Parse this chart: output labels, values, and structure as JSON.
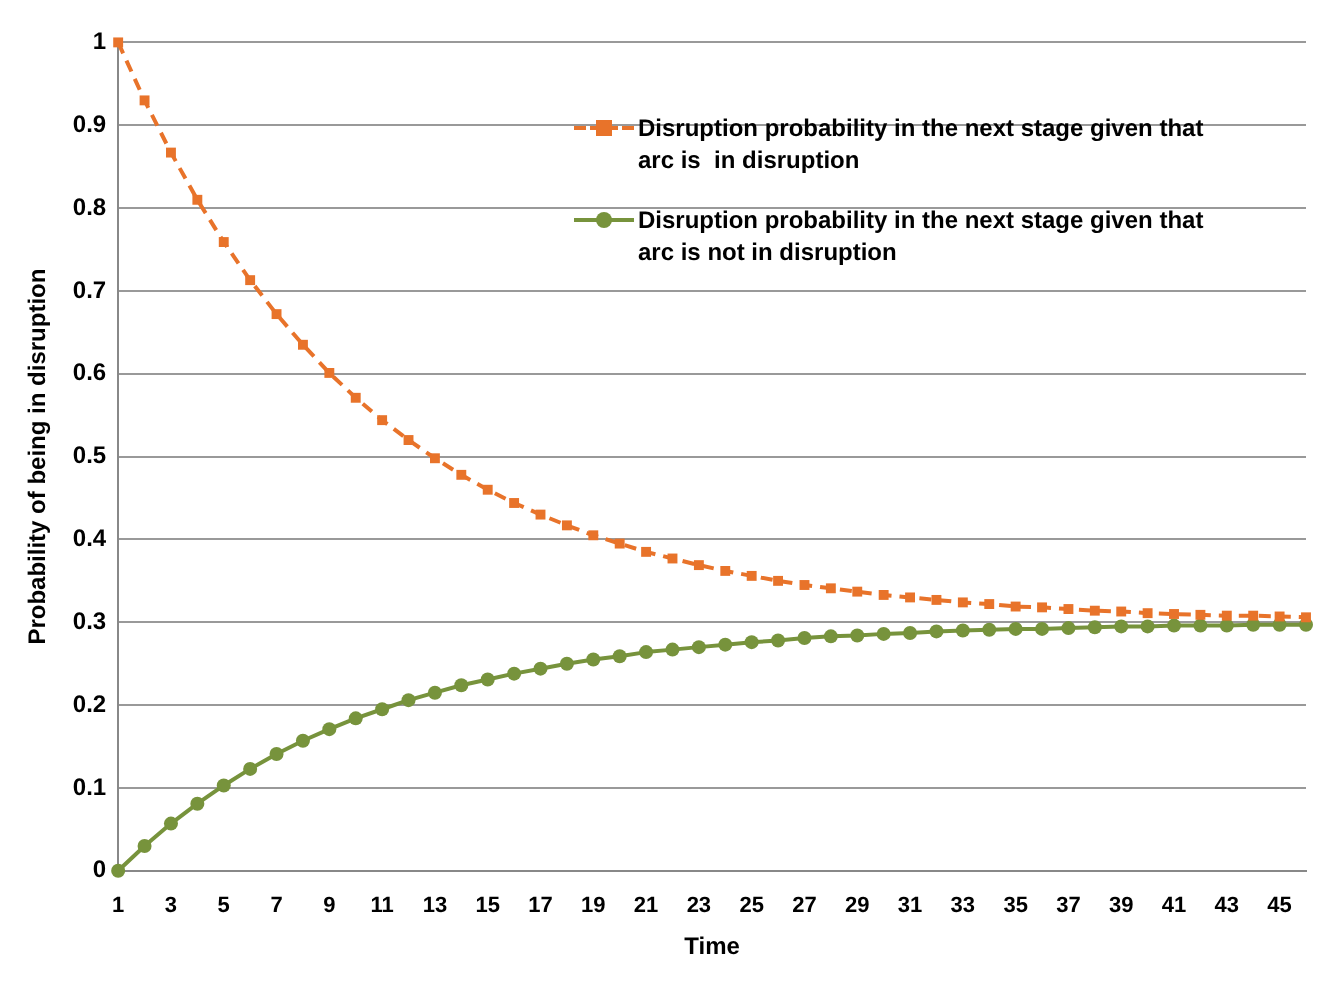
{
  "chart_data": {
    "type": "line",
    "xlabel": "Time",
    "ylabel": "Probability of being in disruption",
    "x": [
      1,
      2,
      3,
      4,
      5,
      6,
      7,
      8,
      9,
      10,
      11,
      12,
      13,
      14,
      15,
      16,
      17,
      18,
      19,
      20,
      21,
      22,
      23,
      24,
      25,
      26,
      27,
      28,
      29,
      30,
      31,
      32,
      33,
      34,
      35,
      36,
      37,
      38,
      39,
      40,
      41,
      42,
      43,
      44,
      45,
      46
    ],
    "xlim": [
      1,
      46
    ],
    "xticks": [
      1,
      3,
      5,
      7,
      9,
      11,
      13,
      15,
      17,
      19,
      21,
      23,
      25,
      27,
      29,
      31,
      33,
      35,
      37,
      39,
      41,
      43,
      45
    ],
    "series": [
      {
        "name": "Disruption probability in the next stage given that arc is  in disruption",
        "color": "#e8732a",
        "marker": "square",
        "line_style": "dashed",
        "values": [
          1.0,
          0.93,
          0.867,
          0.81,
          0.759,
          0.713,
          0.672,
          0.635,
          0.601,
          0.571,
          0.544,
          0.52,
          0.498,
          0.478,
          0.46,
          0.444,
          0.43,
          0.417,
          0.405,
          0.395,
          0.385,
          0.377,
          0.369,
          0.362,
          0.356,
          0.35,
          0.345,
          0.341,
          0.337,
          0.333,
          0.33,
          0.327,
          0.324,
          0.322,
          0.319,
          0.318,
          0.316,
          0.314,
          0.313,
          0.311,
          0.31,
          0.309,
          0.308,
          0.308,
          0.307,
          0.306
        ]
      },
      {
        "name": "Disruption probability in the next stage given that arc is not in disruption",
        "color": "#77933c",
        "marker": "circle",
        "line_style": "solid",
        "values": [
          0,
          0.03,
          0.057,
          0.081,
          0.103,
          0.123,
          0.141,
          0.157,
          0.171,
          0.184,
          0.195,
          0.206,
          0.215,
          0.224,
          0.231,
          0.238,
          0.244,
          0.25,
          0.255,
          0.259,
          0.264,
          0.267,
          0.27,
          0.273,
          0.276,
          0.278,
          0.281,
          0.283,
          0.284,
          0.286,
          0.287,
          0.289,
          0.29,
          0.291,
          0.292,
          0.292,
          0.293,
          0.294,
          0.295,
          0.295,
          0.296,
          0.296,
          0.296,
          0.297,
          0.297,
          0.297
        ]
      }
    ],
    "ylim": [
      0,
      1
    ],
    "yticks": [
      0,
      0.1,
      0.2,
      0.3,
      0.4,
      0.5,
      0.6,
      0.7,
      0.8,
      0.9,
      1
    ],
    "grid": "y",
    "legend": "top right"
  }
}
